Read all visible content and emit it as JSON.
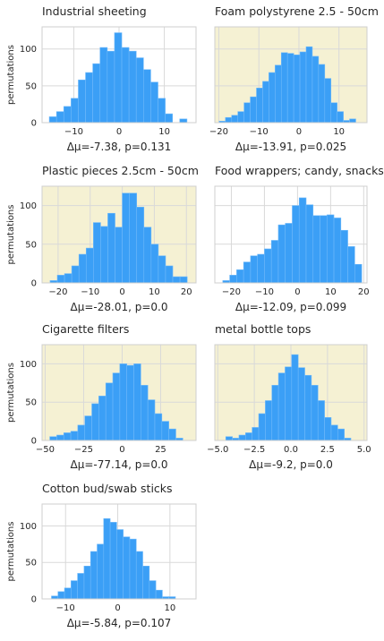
{
  "colors": {
    "bar": "#3b9ff6",
    "bar_edge": "#6fb9fa",
    "highlight_bg": "#f5f1d3",
    "plain_bg": "#ffffff",
    "grid": "#d9d9d9",
    "spine": "#cfcfcf"
  },
  "chart_data": [
    {
      "type": "bar",
      "title": "Industrial sheeting",
      "ylabel": "permutations",
      "xlabel": "Δμ=-7.38, p=0.131",
      "highlight": false,
      "xlim": [
        -17,
        17
      ],
      "ylim": [
        0,
        130
      ],
      "xticks": [
        -10,
        0,
        10
      ],
      "yticks": [
        0,
        50,
        100
      ],
      "bins": {
        "start": -15.4,
        "width": 1.6
      },
      "values": [
        8,
        15,
        22,
        33,
        58,
        68,
        80,
        102,
        97,
        122,
        102,
        97,
        88,
        72,
        55,
        33,
        12,
        0,
        5
      ],
      "show_yticklabels": true
    },
    {
      "type": "bar",
      "title": "Foam polystyrene  2.5 - 50cm",
      "ylabel": "",
      "xlabel": "Δμ=-13.91, p=0.025",
      "highlight": true,
      "xlim": [
        -21,
        17
      ],
      "ylim": [
        0,
        130
      ],
      "xticks": [
        -20,
        -10,
        0,
        10
      ],
      "yticks": [
        0,
        50,
        100
      ],
      "bins": {
        "start": -19.9,
        "width": 1.55
      },
      "values": [
        2,
        7,
        10,
        15,
        27,
        35,
        47,
        56,
        68,
        78,
        95,
        94,
        92,
        96,
        103,
        90,
        79,
        60,
        27,
        15,
        3,
        5
      ],
      "show_yticklabels": false
    },
    {
      "type": "bar",
      "title": "Plastic pieces 2.5cm - 50cm",
      "ylabel": "permutations",
      "xlabel": "Δμ=-28.01, p=0.0",
      "highlight": true,
      "xlim": [
        -25,
        23
      ],
      "ylim": [
        0,
        125
      ],
      "xticks": [
        -20,
        -10,
        0,
        10,
        20
      ],
      "yticks": [
        0,
        50,
        100
      ],
      "bins": {
        "start": -22.5,
        "width": 2.25
      },
      "values": [
        3,
        10,
        12,
        22,
        37,
        45,
        78,
        73,
        90,
        72,
        116,
        116,
        98,
        72,
        50,
        35,
        22,
        8,
        8
      ],
      "show_yticklabels": true
    },
    {
      "type": "bar",
      "title": "Food wrappers; candy, snacks",
      "ylabel": "",
      "xlabel": "Δμ=-12.09, p=0.099",
      "highlight": false,
      "xlim": [
        -25,
        21
      ],
      "ylim": [
        0,
        125
      ],
      "xticks": [
        -20,
        -10,
        0,
        10,
        20
      ],
      "yticks": [
        0,
        50,
        100
      ],
      "bins": {
        "start": -22.6,
        "width": 2.1
      },
      "values": [
        3,
        10,
        17,
        27,
        35,
        37,
        44,
        55,
        75,
        77,
        100,
        110,
        101,
        87,
        87,
        88,
        84,
        68,
        47,
        24
      ],
      "show_yticklabels": false
    },
    {
      "type": "bar",
      "title": "Cigarette filters",
      "ylabel": "permutations",
      "xlabel": "Δμ=-77.14, p=0.0",
      "highlight": true,
      "xlim": [
        -52,
        48
      ],
      "ylim": [
        0,
        125
      ],
      "xticks": [
        -50,
        -25,
        0,
        25
      ],
      "yticks": [
        0,
        50,
        100
      ],
      "bins": {
        "start": -47,
        "width": 4.55
      },
      "values": [
        5,
        7,
        10,
        12,
        20,
        32,
        48,
        58,
        75,
        88,
        100,
        98,
        100,
        72,
        53,
        35,
        25,
        15,
        3
      ],
      "show_yticklabels": true
    },
    {
      "type": "bar",
      "title": "metal bottle tops",
      "ylabel": "",
      "xlabel": "Δμ=-9.2, p=0.0",
      "highlight": true,
      "xlim": [
        -5.2,
        5.2
      ],
      "ylim": [
        0,
        125
      ],
      "xticks": [
        -5.0,
        -2.5,
        0.0,
        2.5,
        5.0
      ],
      "xtick_labels": [
        "−5.0",
        "−2.5",
        "0.0",
        "2.5",
        "5.0"
      ],
      "yticks": [
        0,
        50,
        100
      ],
      "bins": {
        "start": -4.45,
        "width": 0.45
      },
      "values": [
        5,
        3,
        7,
        10,
        17,
        35,
        52,
        72,
        88,
        96,
        112,
        95,
        85,
        72,
        52,
        30,
        20,
        15,
        3
      ],
      "show_yticklabels": false
    },
    {
      "type": "bar",
      "title": "Cotton bud/swab sticks",
      "ylabel": "permutations",
      "xlabel": "Δμ=-5.84, p=0.107",
      "highlight": false,
      "xlim": [
        -14.5,
        15
      ],
      "ylim": [
        0,
        130
      ],
      "xticks": [
        -10,
        0,
        10
      ],
      "yticks": [
        0,
        50,
        100
      ],
      "bins": {
        "start": -12.7,
        "width": 1.25
      },
      "values": [
        4,
        10,
        15,
        25,
        35,
        45,
        65,
        75,
        110,
        105,
        95,
        85,
        82,
        65,
        45,
        25,
        12,
        3,
        3
      ],
      "show_yticklabels": true
    }
  ]
}
